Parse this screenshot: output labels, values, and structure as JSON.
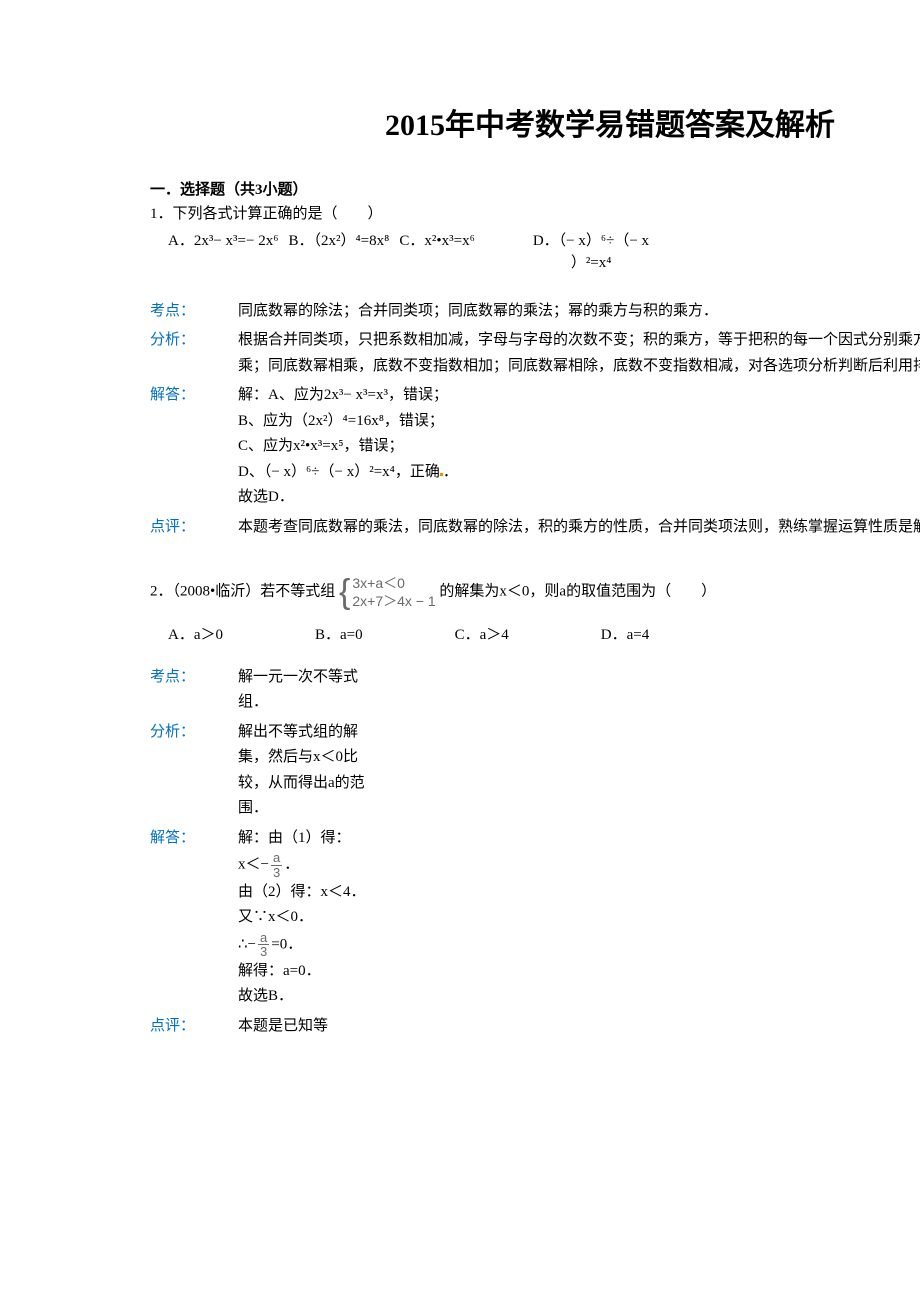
{
  "title": "2015年中考数学易错题答案及解析",
  "section1": {
    "header": "一．选择题（共3小题）",
    "q1": {
      "stem": "1．下列各式计算正确的是（　　）",
      "options": {
        "A": "A．2x³− x³=− 2x⁶",
        "B": "B．（2x²）⁴=8x⁸",
        "C": "C．x²•x³=x⁶",
        "D_line1": "D．（− x）⁶÷（− x",
        "D_line2": "）²=x⁴"
      },
      "kaodian_label": "考点：",
      "kaodian": "同底数幂的除法；合并同类项；同底数幂的乘法；幂的乘方与积的乘方．",
      "fenxi_label": "分析：",
      "fenxi": "根据合并同类项，只把系数相加减，字母与字母的次数不变；积的乘方，等于把积的每一个因式分别乘方，再把所得的幂相乘；同底数幂相乘，底数不变指数相加；同底数幂相除，底数不变指数相减，对各选项分析判断后利用排除法求解．",
      "jieda_label": "解答：",
      "jieda_lines": [
        "解：A、应为2x³− x³=x³，错误；",
        "B、应为（2x²）⁴=16x⁸，错误；",
        "C、应为x²•x³=x⁵，错误；",
        "D、（− x）⁶÷（− x）²=x⁴，正确",
        "故选D．"
      ],
      "dianping_label": "点评：",
      "dianping": "本题考查同底数幂的乘法，同底数幂的除法，积的乘方的性质，合并同类项法则，熟练掌握运算性质是解题的关键．"
    },
    "q2": {
      "stem_prefix": "2．（2008•临沂）若不等式组",
      "brace_line1": "3x+a＜0",
      "brace_line2": "2x+7＞4x − 1",
      "stem_suffix": " 的解集为x＜0，则a的取值范围为（　　）",
      "options": {
        "A": "A．a＞0",
        "B": "B．a=0",
        "C": "C．a＞4",
        "D": "D．a=4"
      },
      "kaodian_label": "考点：",
      "kaodian": "解一元一次不等式组．",
      "fenxi_label": "分析：",
      "fenxi": "解出不等式组的解集，然后与x＜0比较，从而得出a的范围．",
      "jieda_label": "解答：",
      "jieda": {
        "line1": "解：由（1）得：",
        "line2_pre": "x＜−",
        "line2_frac_num": "a",
        "line2_frac_den": "3",
        "line2_post": "．",
        "line3": "由（2）得：x＜4．",
        "line4": "又∵x＜0．",
        "line5_pre": "∴−",
        "line5_frac_num": "a",
        "line5_frac_den": "3",
        "line5_post": "=0．",
        "line6": "解得：a=0．",
        "line7": "故选B．"
      },
      "dianping_label": "点评：",
      "dianping": "本题是已知等"
    }
  },
  "colors": {
    "text": "#000000",
    "label": "#0070c0",
    "formula": "#6a6a6a",
    "highlight_dot": "#ff8800",
    "background": "#ffffff"
  },
  "typography": {
    "title_fontsize": 30,
    "body_fontsize": 15,
    "font_family": "SimSun"
  }
}
